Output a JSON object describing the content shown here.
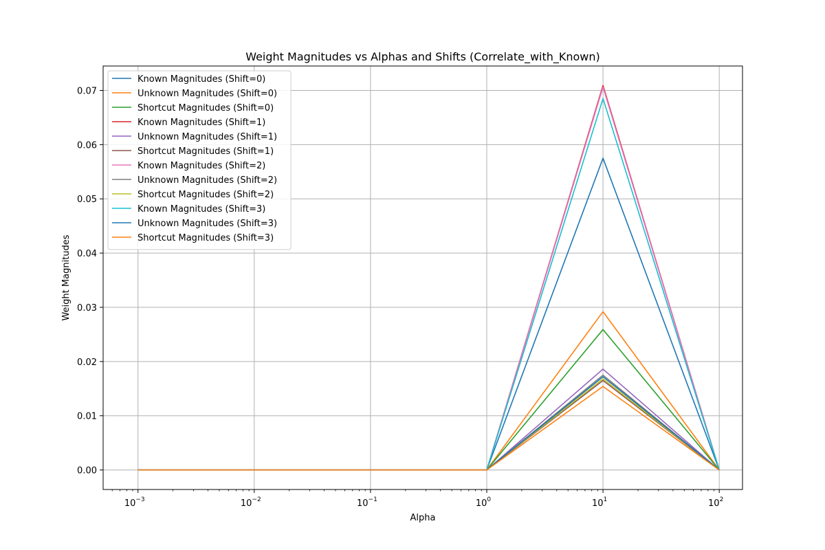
{
  "chart_data": {
    "type": "line",
    "title": "Weight Magnitudes vs Alphas and Shifts (Correlate_with_Known)",
    "xlabel": "Alpha",
    "ylabel": "Weight Magnitudes",
    "xscale": "log",
    "x": [
      0.001,
      0.01,
      0.1,
      1,
      10,
      100
    ],
    "x_tick_labels": [
      {
        "base": "10",
        "exp": "−3"
      },
      {
        "base": "10",
        "exp": "−2"
      },
      {
        "base": "10",
        "exp": "−1"
      },
      {
        "base": "10",
        "exp": "0"
      },
      {
        "base": "10",
        "exp": "1"
      },
      {
        "base": "10",
        "exp": "2"
      }
    ],
    "y_ticks": [
      "0.00",
      "0.01",
      "0.02",
      "0.03",
      "0.04",
      "0.05",
      "0.06",
      "0.07"
    ],
    "ylim": [
      -0.0036,
      0.0745
    ],
    "grid": true,
    "legend_position": "top-left",
    "series": [
      {
        "name": "Known Magnitudes (Shift=0)",
        "color": "#1f77b4",
        "values": [
          0,
          0,
          0,
          0,
          0.0575,
          0
        ]
      },
      {
        "name": "Unknown Magnitudes (Shift=0)",
        "color": "#ff7f0e",
        "values": [
          0,
          0,
          0,
          0,
          0.0292,
          0
        ]
      },
      {
        "name": "Shortcut Magnitudes (Shift=0)",
        "color": "#2ca02c",
        "values": [
          0,
          0,
          0,
          0,
          0.0259,
          0
        ]
      },
      {
        "name": "Known Magnitudes (Shift=1)",
        "color": "#d62728",
        "values": [
          0,
          0,
          0,
          0,
          0.0709,
          0
        ]
      },
      {
        "name": "Unknown Magnitudes (Shift=1)",
        "color": "#9467bd",
        "values": [
          0,
          0,
          0,
          0,
          0.0186,
          0
        ]
      },
      {
        "name": "Shortcut Magnitudes (Shift=1)",
        "color": "#8c564b",
        "values": [
          0,
          0,
          0,
          0,
          0.0165,
          0
        ]
      },
      {
        "name": "Known Magnitudes (Shift=2)",
        "color": "#e377c2",
        "values": [
          0,
          0,
          0,
          0,
          0.0706,
          0
        ]
      },
      {
        "name": "Unknown Magnitudes (Shift=2)",
        "color": "#7f7f7f",
        "values": [
          0,
          0,
          0,
          0,
          0.0175,
          0
        ]
      },
      {
        "name": "Shortcut Magnitudes (Shift=2)",
        "color": "#bcbd22",
        "values": [
          0,
          0,
          0,
          0,
          0.0168,
          0
        ]
      },
      {
        "name": "Known Magnitudes (Shift=3)",
        "color": "#17becf",
        "values": [
          0,
          0,
          0,
          0,
          0.0685,
          0
        ]
      },
      {
        "name": "Unknown Magnitudes (Shift=3)",
        "color": "#1f77b4",
        "values": [
          0,
          0,
          0,
          0,
          0.0172,
          0
        ]
      },
      {
        "name": "Shortcut Magnitudes (Shift=3)",
        "color": "#ff7f0e",
        "values": [
          0,
          0,
          0,
          0,
          0.0154,
          0
        ]
      }
    ]
  }
}
